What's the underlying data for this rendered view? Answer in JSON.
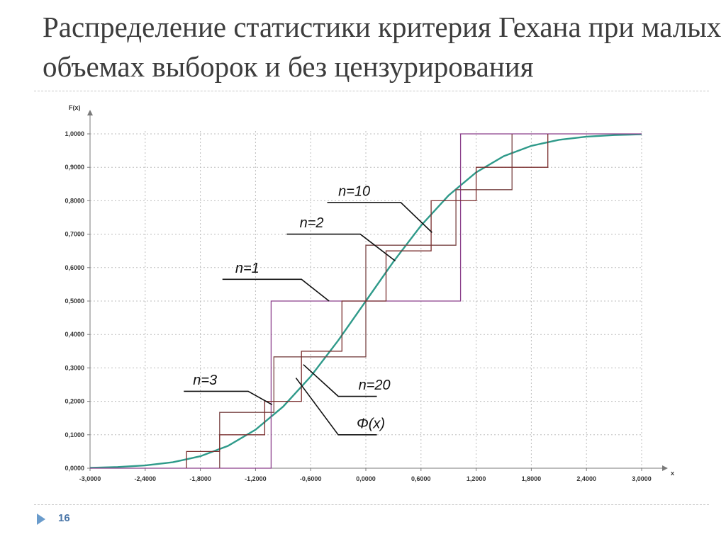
{
  "slide": {
    "title": "Распределение статистики критерия Гехана при малых объемах выборок и без цензурирования",
    "page_number": "16"
  },
  "colors": {
    "background": "#ffffff",
    "title_text": "#3d3d3d",
    "grid": "#bdbdbd",
    "axis": "#7a7a7a",
    "phi_curve": "#2f9a8a",
    "n1": "#8a3f8a",
    "n2": "#7a4545",
    "n3": "#7a2e2e",
    "n10": "#6a4a4a",
    "n20": "#505050",
    "accent": "#6a9ccc"
  },
  "icons": {
    "footer_bullet": "play-triangle-icon"
  },
  "chart_data": {
    "type": "line",
    "xlabel": "x",
    "ylabel": "F(x)",
    "xlim": [
      -3.0,
      3.0
    ],
    "ylim": [
      0.0,
      1.0
    ],
    "grid": true,
    "x_ticks": [
      "-3,0000",
      "-2,4000",
      "-1,8000",
      "-1,2000",
      "-0,6000",
      "0,0000",
      "0,6000",
      "1,2000",
      "1,8000",
      "2,4000",
      "3,0000"
    ],
    "x_tick_values": [
      -3.0,
      -2.4,
      -1.8,
      -1.2,
      -0.6,
      0.0,
      0.6,
      1.2,
      1.8,
      2.4,
      3.0
    ],
    "y_ticks": [
      "0,0000",
      "0,1000",
      "0,2000",
      "0,3000",
      "0,4000",
      "0,5000",
      "0,6000",
      "0,7000",
      "0,8000",
      "0,9000",
      "1,0000"
    ],
    "y_tick_values": [
      0.0,
      0.1,
      0.2,
      0.3,
      0.4,
      0.5,
      0.6,
      0.7,
      0.8,
      0.9,
      1.0
    ],
    "series": [
      {
        "name": "Φ(x)",
        "kind": "curve",
        "color_key": "phi_curve",
        "x": [
          -3.0,
          -2.7,
          -2.4,
          -2.1,
          -1.8,
          -1.5,
          -1.2,
          -0.9,
          -0.6,
          -0.3,
          0.0,
          0.3,
          0.6,
          0.9,
          1.2,
          1.5,
          1.8,
          2.1,
          2.4,
          2.7,
          3.0
        ],
        "y": [
          0.0013,
          0.0035,
          0.0082,
          0.0179,
          0.0359,
          0.0668,
          0.1151,
          0.1841,
          0.2743,
          0.3821,
          0.5,
          0.6179,
          0.7257,
          0.8159,
          0.8849,
          0.9332,
          0.9641,
          0.9821,
          0.9918,
          0.9965,
          0.9987
        ]
      },
      {
        "name": "n=1",
        "kind": "step",
        "color_key": "n1",
        "x": [
          -3.0,
          -1.03,
          -1.03,
          1.03,
          1.03,
          3.0
        ],
        "y": [
          0.0,
          0.0,
          0.5,
          0.5,
          1.0,
          1.0
        ]
      },
      {
        "name": "n=2",
        "kind": "step",
        "color_key": "n2",
        "x": [
          -1.59,
          -1.59,
          -1.0,
          -1.0,
          0.0,
          0.0,
          0.98,
          0.98,
          1.59,
          1.59
        ],
        "y": [
          0.0,
          0.167,
          0.167,
          0.333,
          0.333,
          0.667,
          0.667,
          0.833,
          0.833,
          1.0
        ]
      },
      {
        "name": "n=3",
        "kind": "step",
        "color_key": "n3",
        "x": [
          -1.95,
          -1.95,
          -1.59,
          -1.59,
          -1.1,
          -1.1,
          -0.7,
          -0.7,
          -0.26,
          -0.26,
          0.22,
          0.22,
          0.71,
          0.71,
          1.2,
          1.2,
          1.98,
          1.98
        ],
        "y": [
          0.0,
          0.05,
          0.05,
          0.1,
          0.1,
          0.2,
          0.2,
          0.35,
          0.35,
          0.5,
          0.5,
          0.65,
          0.65,
          0.8,
          0.8,
          0.9,
          0.9,
          1.0
        ]
      }
    ],
    "annotations": [
      {
        "label": "n=10",
        "text_x": -0.3,
        "text_y": 0.815,
        "line_x1": -0.42,
        "line_y1": 0.795,
        "line_x2": 0.38,
        "line_y2": 0.795,
        "line_x3": 0.72,
        "line_y3": 0.705
      },
      {
        "label": "n=2",
        "text_x": -0.72,
        "text_y": 0.72,
        "line_x1": -0.86,
        "line_y1": 0.7,
        "line_x2": -0.06,
        "line_y2": 0.7,
        "line_x3": 0.32,
        "line_y3": 0.62
      },
      {
        "label": "n=1",
        "text_x": -1.42,
        "text_y": 0.585,
        "line_x1": -1.56,
        "line_y1": 0.565,
        "line_x2": -0.7,
        "line_y2": 0.565,
        "line_x3": -0.4,
        "line_y3": 0.5
      },
      {
        "label": "n=3",
        "text_x": -1.88,
        "text_y": 0.25,
        "line_x1": -1.98,
        "line_y1": 0.23,
        "line_x2": -1.28,
        "line_y2": 0.23,
        "line_x3": -1.02,
        "line_y3": 0.19
      },
      {
        "label": "n=20",
        "text_x": -0.08,
        "text_y": 0.235,
        "line_x1": 0.12,
        "line_y1": 0.215,
        "line_x2": -0.3,
        "line_y2": 0.215,
        "line_x3": -0.68,
        "line_y3": 0.31
      },
      {
        "label": "Φ(x)",
        "text_x": -0.1,
        "text_y": 0.12,
        "line_x1": 0.12,
        "line_y1": 0.1,
        "line_x2": -0.3,
        "line_y2": 0.1,
        "line_x3": -0.76,
        "line_y3": 0.27
      }
    ]
  }
}
